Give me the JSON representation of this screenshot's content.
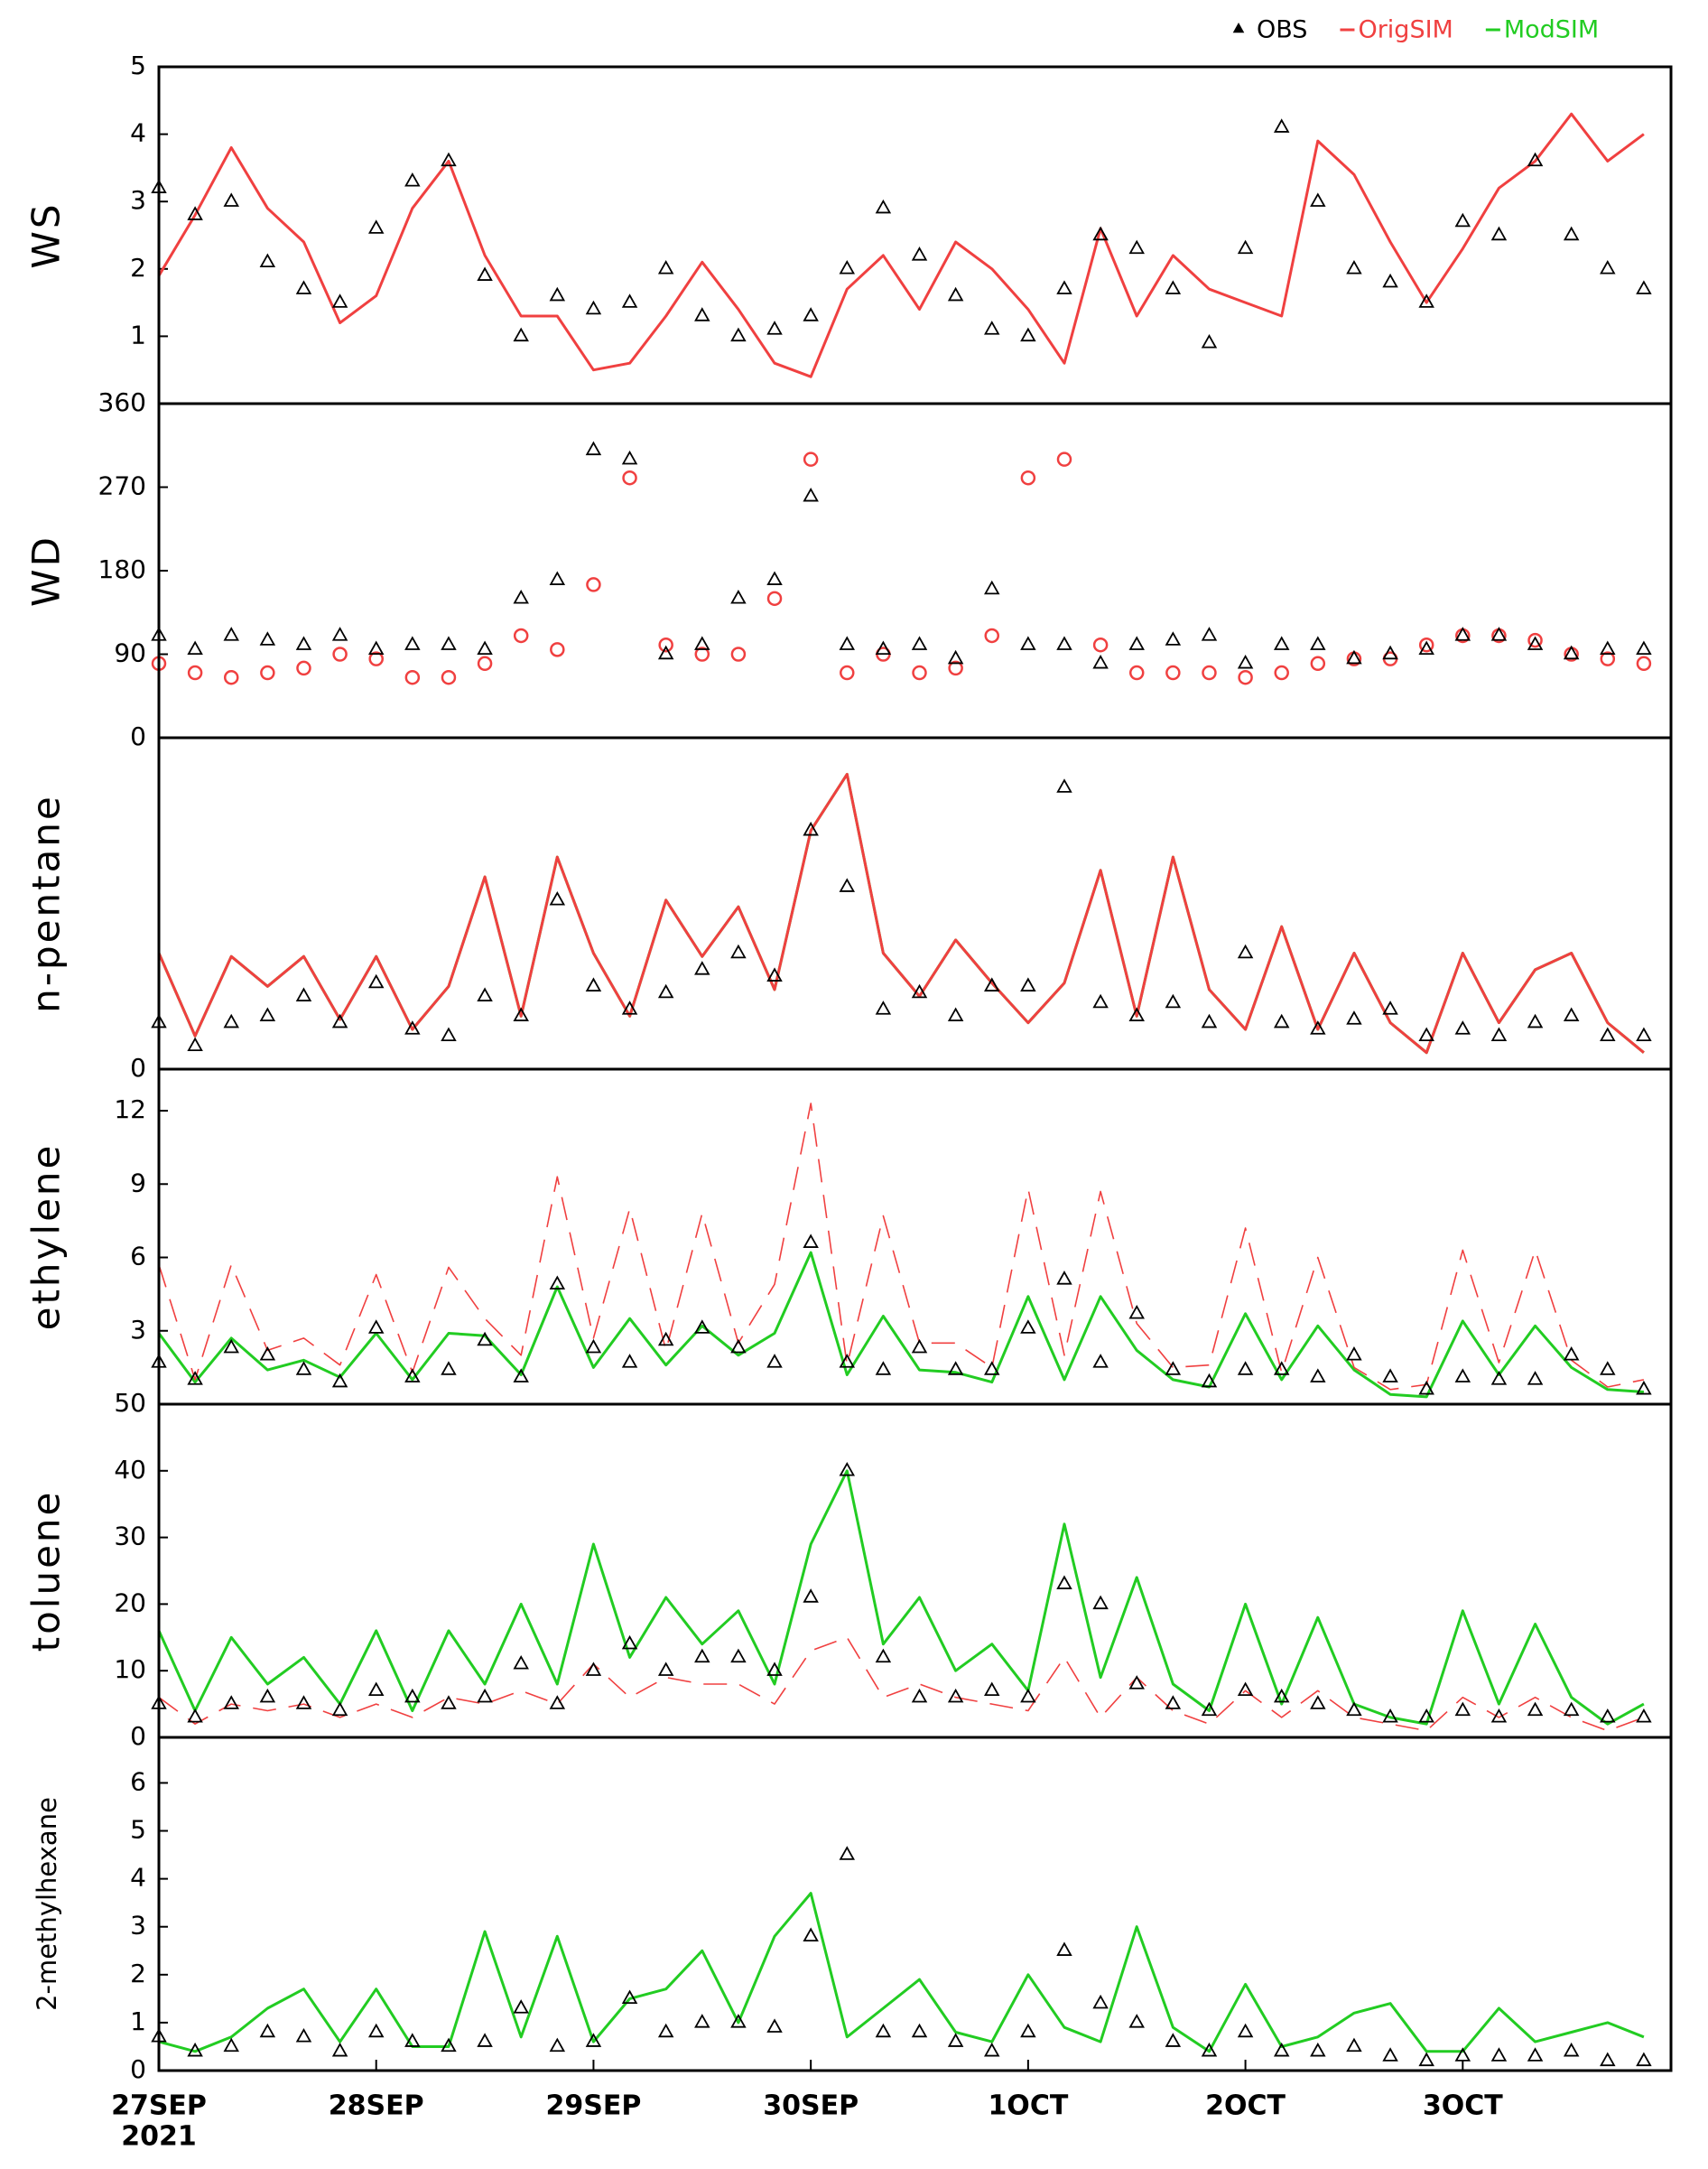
{
  "chart_data": [
    {
      "type": "line",
      "ylabel": "WS",
      "xlim": [
        0,
        167
      ],
      "ylim": [
        0,
        5
      ],
      "yticks": [
        1,
        2,
        3,
        4,
        5
      ],
      "x": [
        0,
        4,
        8,
        12,
        16,
        20,
        24,
        28,
        32,
        36,
        40,
        44,
        48,
        52,
        56,
        60,
        64,
        68,
        72,
        76,
        80,
        84,
        88,
        92,
        96,
        100,
        104,
        108,
        112,
        116,
        120,
        124,
        128,
        132,
        136,
        140,
        144,
        148,
        152,
        156,
        160,
        164
      ],
      "series": [
        {
          "name": "OBS",
          "color": "#000000",
          "marker": "triangle",
          "line_style": "none",
          "values": [
            3.2,
            2.8,
            3.0,
            2.1,
            1.7,
            1.5,
            2.6,
            3.3,
            3.6,
            1.9,
            1.0,
            1.6,
            1.4,
            1.5,
            2.0,
            1.3,
            1.0,
            1.1,
            1.3,
            2.0,
            2.9,
            2.2,
            1.6,
            1.1,
            1.0,
            1.7,
            2.5,
            2.3,
            1.7,
            0.9,
            2.3,
            4.1,
            3.0,
            2.0,
            1.8,
            1.5,
            2.7,
            2.5,
            3.6,
            2.5,
            2.0,
            1.7
          ]
        },
        {
          "name": "OrigSIM",
          "color": "#f04040",
          "line_style": "solid",
          "values": [
            1.9,
            2.8,
            3.8,
            2.9,
            2.4,
            1.2,
            1.6,
            2.9,
            3.6,
            2.2,
            1.3,
            1.3,
            0.5,
            0.6,
            1.3,
            2.1,
            1.4,
            0.6,
            0.4,
            1.7,
            2.2,
            1.4,
            2.4,
            2.0,
            1.4,
            0.6,
            2.6,
            1.3,
            2.2,
            1.7,
            1.5,
            1.3,
            3.9,
            3.4,
            2.4,
            1.5,
            2.3,
            3.2,
            3.6,
            4.3,
            3.6,
            4.0
          ]
        }
      ]
    },
    {
      "type": "line",
      "ylabel": "WD",
      "xlim": [
        0,
        167
      ],
      "ylim": [
        0,
        360
      ],
      "yticks": [
        0,
        90,
        180,
        270,
        360
      ],
      "x": [
        0,
        4,
        8,
        12,
        16,
        20,
        24,
        28,
        32,
        36,
        40,
        44,
        48,
        52,
        56,
        60,
        64,
        68,
        72,
        76,
        80,
        84,
        88,
        92,
        96,
        100,
        104,
        108,
        112,
        116,
        120,
        124,
        128,
        132,
        136,
        140,
        144,
        148,
        152,
        156,
        160,
        164
      ],
      "series": [
        {
          "name": "OBS",
          "color": "#000000",
          "marker": "triangle",
          "line_style": "none",
          "values": [
            110,
            95,
            110,
            105,
            100,
            110,
            95,
            100,
            100,
            95,
            150,
            170,
            310,
            300,
            90,
            100,
            150,
            170,
            260,
            100,
            95,
            100,
            85,
            160,
            100,
            100,
            80,
            100,
            105,
            110,
            80,
            100,
            100,
            85,
            90,
            95,
            110,
            110,
            100,
            90,
            95,
            95
          ]
        },
        {
          "name": "OrigSIM",
          "color": "#f04040",
          "marker": "circle",
          "line_style": "none",
          "values": [
            80,
            70,
            65,
            70,
            75,
            90,
            85,
            65,
            65,
            80,
            110,
            95,
            165,
            280,
            100,
            90,
            90,
            150,
            300,
            70,
            90,
            70,
            75,
            110,
            280,
            300,
            100,
            70,
            70,
            70,
            65,
            70,
            80,
            85,
            85,
            100,
            110,
            110,
            105,
            90,
            85,
            80
          ]
        }
      ]
    },
    {
      "type": "line",
      "ylabel": "n-pentane",
      "xlim": [
        0,
        167
      ],
      "ylim": [
        0,
        1
      ],
      "yticks": [
        0
      ],
      "x": [
        0,
        4,
        8,
        12,
        16,
        20,
        24,
        28,
        32,
        36,
        40,
        44,
        48,
        52,
        56,
        60,
        64,
        68,
        72,
        76,
        80,
        84,
        88,
        92,
        96,
        100,
        104,
        108,
        112,
        116,
        120,
        124,
        128,
        132,
        136,
        140,
        144,
        148,
        152,
        156,
        160,
        164
      ],
      "series": [
        {
          "name": "OBS",
          "color": "#000000",
          "marker": "triangle",
          "line_style": "none",
          "values": [
            0.14,
            0.07,
            0.14,
            0.16,
            0.22,
            0.14,
            0.26,
            0.12,
            0.1,
            0.22,
            0.16,
            0.51,
            0.25,
            0.18,
            0.23,
            0.3,
            0.35,
            0.28,
            0.72,
            0.55,
            0.18,
            0.23,
            0.16,
            0.25,
            0.25,
            0.85,
            0.2,
            0.16,
            0.2,
            0.14,
            0.35,
            0.14,
            0.12,
            0.15,
            0.18,
            0.1,
            0.12,
            0.1,
            0.14,
            0.16,
            0.1,
            0.1
          ]
        },
        {
          "name": "OrigSIM",
          "color": "#f04040",
          "line_style": "solid",
          "values": [
            0.35,
            0.1,
            0.34,
            0.25,
            0.34,
            0.15,
            0.34,
            0.12,
            0.25,
            0.58,
            0.16,
            0.64,
            0.35,
            0.16,
            0.51,
            0.34,
            0.49,
            0.24,
            0.72,
            0.89,
            0.35,
            0.22,
            0.39,
            0.26,
            0.14,
            0.26,
            0.6,
            0.16,
            0.64,
            0.24,
            0.12,
            0.43,
            0.12,
            0.35,
            0.14,
            0.05,
            0.35,
            0.14,
            0.3,
            0.35,
            0.14,
            0.05
          ]
        },
        {
          "name": "ModSIM",
          "color": "#22cc22",
          "line_style": "solid",
          "values": [
            0.35,
            0.1,
            0.34,
            0.25,
            0.34,
            0.15,
            0.34,
            0.12,
            0.25,
            0.58,
            0.16,
            0.64,
            0.35,
            0.16,
            0.51,
            0.34,
            0.49,
            0.24,
            0.72,
            0.89,
            0.35,
            0.22,
            0.39,
            0.26,
            0.14,
            0.26,
            0.6,
            0.16,
            0.64,
            0.24,
            0.12,
            0.43,
            0.12,
            0.35,
            0.14,
            0.05,
            0.35,
            0.14,
            0.3,
            0.35,
            0.14,
            0.05
          ]
        }
      ]
    },
    {
      "type": "line",
      "ylabel": "ethylene",
      "xlim": [
        0,
        167
      ],
      "ylim": [
        0,
        13.7
      ],
      "yticks": [
        3,
        6,
        9,
        12
      ],
      "x": [
        0,
        4,
        8,
        12,
        16,
        20,
        24,
        28,
        32,
        36,
        40,
        44,
        48,
        52,
        56,
        60,
        64,
        68,
        72,
        76,
        80,
        84,
        88,
        92,
        96,
        100,
        104,
        108,
        112,
        116,
        120,
        124,
        128,
        132,
        136,
        140,
        144,
        148,
        152,
        156,
        160,
        164
      ],
      "series": [
        {
          "name": "OBS",
          "color": "#000000",
          "marker": "triangle",
          "line_style": "none",
          "values": [
            1.7,
            1.0,
            2.3,
            2.0,
            1.4,
            0.9,
            3.1,
            1.1,
            1.4,
            2.6,
            1.1,
            4.9,
            2.3,
            1.7,
            2.6,
            3.1,
            2.3,
            1.7,
            6.6,
            1.7,
            1.4,
            2.3,
            1.4,
            1.4,
            3.1,
            5.1,
            1.7,
            3.7,
            1.4,
            0.9,
            1.4,
            1.4,
            1.1,
            2.0,
            1.1,
            0.6,
            1.1,
            1.0,
            1.0,
            2.0,
            1.4,
            0.6
          ]
        },
        {
          "name": "OrigSIM",
          "color": "#f04040",
          "line_style": "dashed",
          "values": [
            5.7,
            1.0,
            5.7,
            2.2,
            2.7,
            1.6,
            5.3,
            1.3,
            5.6,
            3.5,
            2.0,
            9.3,
            2.7,
            8.0,
            2.2,
            7.8,
            2.5,
            4.9,
            12.3,
            1.6,
            7.7,
            2.5,
            2.5,
            1.5,
            8.8,
            2.0,
            8.7,
            3.3,
            1.5,
            1.6,
            7.2,
            1.3,
            6.0,
            1.5,
            0.6,
            0.8,
            6.3,
            1.7,
            6.3,
            1.8,
            0.7,
            1.0
          ]
        },
        {
          "name": "ModSIM",
          "color": "#22cc22",
          "line_style": "solid",
          "values": [
            2.9,
            0.9,
            2.7,
            1.4,
            1.8,
            1.1,
            2.9,
            1.0,
            2.9,
            2.8,
            1.2,
            4.8,
            1.5,
            3.5,
            1.6,
            3.2,
            2.0,
            2.9,
            6.2,
            1.2,
            3.6,
            1.4,
            1.3,
            0.9,
            4.4,
            1.0,
            4.4,
            2.2,
            1.0,
            0.7,
            3.7,
            1.0,
            3.2,
            1.4,
            0.4,
            0.3,
            3.4,
            1.2,
            3.2,
            1.5,
            0.6,
            0.5
          ]
        }
      ]
    },
    {
      "type": "line",
      "ylabel": "toluene",
      "xlim": [
        0,
        167
      ],
      "ylim": [
        0,
        50
      ],
      "yticks": [
        0,
        10,
        20,
        30,
        40,
        50
      ],
      "x": [
        0,
        4,
        8,
        12,
        16,
        20,
        24,
        28,
        32,
        36,
        40,
        44,
        48,
        52,
        56,
        60,
        64,
        68,
        72,
        76,
        80,
        84,
        88,
        92,
        96,
        100,
        104,
        108,
        112,
        116,
        120,
        124,
        128,
        132,
        136,
        140,
        144,
        148,
        152,
        156,
        160,
        164
      ],
      "series": [
        {
          "name": "OBS",
          "color": "#000000",
          "marker": "triangle",
          "line_style": "none",
          "values": [
            5,
            3,
            5,
            6,
            5,
            4,
            7,
            6,
            5,
            6,
            11,
            5,
            10,
            14,
            10,
            12,
            12,
            10,
            21,
            40,
            12,
            6,
            6,
            7,
            6,
            23,
            20,
            8,
            5,
            4,
            7,
            6,
            5,
            4,
            3,
            3,
            4,
            3,
            4,
            4,
            3,
            3
          ]
        },
        {
          "name": "OrigSIM",
          "color": "#f04040",
          "line_style": "dashed",
          "values": [
            6,
            2,
            5,
            4,
            5,
            3,
            5,
            3,
            6,
            5,
            7,
            5,
            11,
            6,
            9,
            8,
            8,
            5,
            13,
            15,
            6,
            8,
            6,
            5,
            4,
            12,
            3,
            9,
            4,
            2,
            7,
            3,
            7,
            3,
            2,
            1,
            6,
            3,
            6,
            3,
            1,
            3
          ]
        },
        {
          "name": "ModSIM",
          "color": "#22cc22",
          "line_style": "solid",
          "values": [
            16,
            4,
            15,
            8,
            12,
            5,
            16,
            4,
            16,
            8,
            20,
            8,
            29,
            12,
            21,
            14,
            19,
            8,
            29,
            40,
            14,
            21,
            10,
            14,
            7,
            32,
            9,
            24,
            8,
            4,
            20,
            5,
            18,
            5,
            3,
            2,
            19,
            5,
            17,
            6,
            2,
            5
          ]
        }
      ]
    },
    {
      "type": "line",
      "ylabel": "2-methylhexane",
      "xlim": [
        0,
        167
      ],
      "ylim": [
        0,
        6.95
      ],
      "yticks": [
        0,
        1,
        2,
        3,
        4,
        5,
        6
      ],
      "xticks": [
        {
          "value": 0,
          "label": "27SEP"
        },
        {
          "value": 24,
          "label": "28SEP"
        },
        {
          "value": 48,
          "label": "29SEP"
        },
        {
          "value": 72,
          "label": "30SEP"
        },
        {
          "value": 96,
          "label": "1OCT"
        },
        {
          "value": 120,
          "label": "2OCT"
        },
        {
          "value": 144,
          "label": "3OCT"
        }
      ],
      "x_year_label": "2021",
      "x": [
        0,
        4,
        8,
        12,
        16,
        20,
        24,
        28,
        32,
        36,
        40,
        44,
        48,
        52,
        56,
        60,
        64,
        68,
        72,
        76,
        80,
        84,
        88,
        92,
        96,
        100,
        104,
        108,
        112,
        116,
        120,
        124,
        128,
        132,
        136,
        140,
        144,
        148,
        152,
        156,
        160,
        164
      ],
      "series": [
        {
          "name": "OBS",
          "color": "#000000",
          "marker": "triangle",
          "line_style": "none",
          "values": [
            0.7,
            0.4,
            0.5,
            0.8,
            0.7,
            0.4,
            0.8,
            0.6,
            0.5,
            0.6,
            1.3,
            0.5,
            0.6,
            1.5,
            0.8,
            1.0,
            1.0,
            0.9,
            2.8,
            4.5,
            0.8,
            0.8,
            0.6,
            0.4,
            0.8,
            2.5,
            1.4,
            1.0,
            0.6,
            0.4,
            0.8,
            0.4,
            0.4,
            0.5,
            0.3,
            0.2,
            0.3,
            0.3,
            0.3,
            0.4,
            0.2,
            0.2
          ]
        },
        {
          "name": "ModSIM",
          "color": "#22cc22",
          "line_style": "solid",
          "values": [
            0.6,
            0.4,
            0.7,
            1.3,
            1.7,
            0.6,
            1.7,
            0.5,
            0.5,
            2.9,
            0.7,
            2.8,
            0.6,
            1.5,
            1.7,
            2.5,
            1.0,
            2.8,
            3.7,
            0.7,
            1.3,
            1.9,
            0.8,
            0.6,
            2.0,
            0.9,
            0.6,
            3.0,
            0.9,
            0.4,
            1.8,
            0.5,
            0.7,
            1.2,
            1.4,
            0.4,
            0.4,
            1.3,
            0.6,
            0.8,
            1.0,
            0.7
          ]
        }
      ]
    }
  ]
}
